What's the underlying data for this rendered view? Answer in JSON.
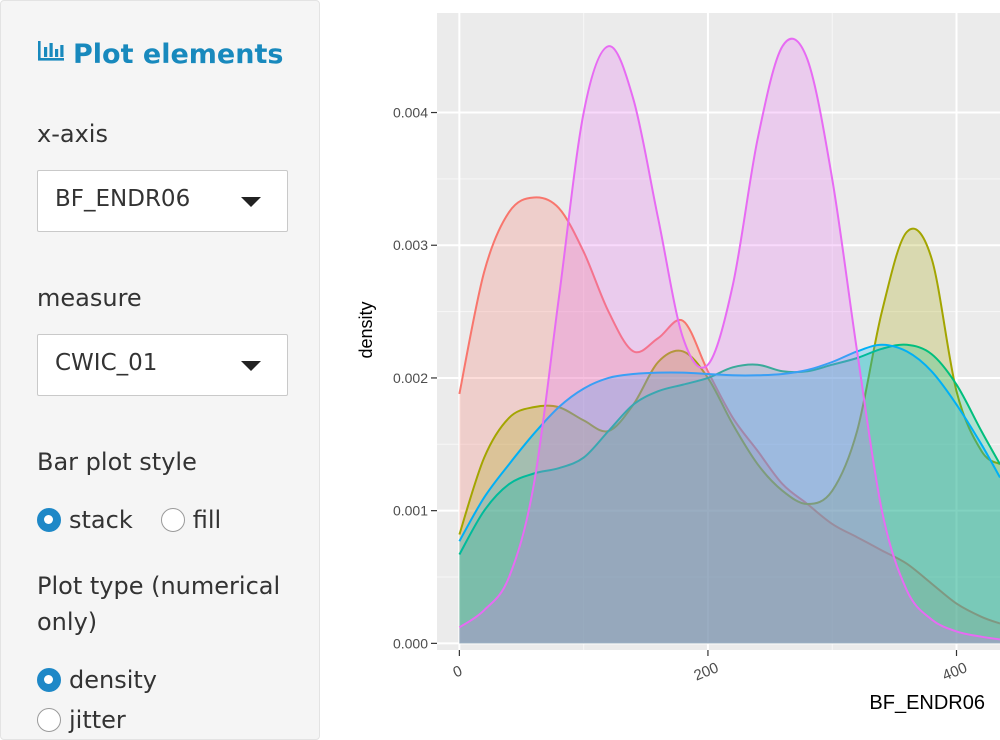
{
  "sidebar": {
    "title": "Plot elements",
    "title_icon": "bar-chart-icon",
    "xaxis": {
      "label": "x-axis",
      "value": "BF_ENDR06"
    },
    "measure": {
      "label": "measure",
      "value": "CWIC_01"
    },
    "bar_style": {
      "label": "Bar plot style",
      "options": [
        {
          "label": "stack",
          "selected": true
        },
        {
          "label": "fill",
          "selected": false
        }
      ]
    },
    "plot_type": {
      "label": "Plot type (numerical only)",
      "options": [
        {
          "label": "density",
          "selected": true
        },
        {
          "label": "jitter",
          "selected": false
        }
      ]
    }
  },
  "colors": {
    "accent": "#1889bd",
    "radio_selected": "#1e88c7",
    "panel_bg": "#ebebeb",
    "grid": "#ffffff"
  },
  "chart_data": {
    "type": "area",
    "subtype": "density",
    "title": "",
    "xlabel": "BF_ENDR06",
    "ylabel": "density",
    "xlim": [
      -18,
      435
    ],
    "ylim": [
      -5e-05,
      0.00475
    ],
    "x_ticks": [
      0,
      200,
      400
    ],
    "y_ticks": [
      0.0,
      0.001,
      0.002,
      0.003,
      0.004
    ],
    "y_tick_labels": [
      "0.000",
      "0.001",
      "0.002",
      "0.003",
      "0.004"
    ],
    "grid": true,
    "legend": "none",
    "fill_opacity": 0.25,
    "series": [
      {
        "color": "#F8766D",
        "x": [
          0,
          20,
          40,
          60,
          80,
          100,
          120,
          140,
          160,
          180,
          200,
          220,
          240,
          260,
          280,
          300,
          320,
          340,
          360,
          380,
          400,
          420,
          435
        ],
        "y": [
          0.00188,
          0.0028,
          0.00325,
          0.00336,
          0.00328,
          0.00295,
          0.0025,
          0.0022,
          0.0023,
          0.00243,
          0.00205,
          0.0017,
          0.00145,
          0.0012,
          0.00105,
          0.0009,
          0.0008,
          0.0007,
          0.0006,
          0.00045,
          0.0003,
          0.0002,
          0.00015
        ]
      },
      {
        "color": "#A3A500",
        "x": [
          0,
          20,
          40,
          60,
          80,
          100,
          120,
          140,
          160,
          180,
          200,
          220,
          240,
          260,
          280,
          300,
          320,
          340,
          360,
          380,
          400,
          420,
          435
        ],
        "y": [
          0.00082,
          0.0014,
          0.0017,
          0.00178,
          0.00178,
          0.00168,
          0.0016,
          0.0018,
          0.00212,
          0.0022,
          0.002,
          0.00165,
          0.00135,
          0.00115,
          0.00105,
          0.00115,
          0.0016,
          0.0025,
          0.0031,
          0.0029,
          0.0019,
          0.00145,
          0.00135
        ]
      },
      {
        "color": "#00BF7D",
        "x": [
          0,
          20,
          40,
          60,
          80,
          100,
          120,
          140,
          160,
          180,
          200,
          220,
          240,
          260,
          280,
          300,
          320,
          340,
          360,
          380,
          400,
          420,
          435
        ],
        "y": [
          0.00067,
          0.001,
          0.0012,
          0.00128,
          0.00132,
          0.0014,
          0.0016,
          0.0018,
          0.0019,
          0.00195,
          0.002,
          0.00208,
          0.0021,
          0.00205,
          0.00205,
          0.0021,
          0.00215,
          0.00222,
          0.00225,
          0.00218,
          0.00195,
          0.0016,
          0.00135
        ]
      },
      {
        "color": "#00B0F6",
        "x": [
          0,
          20,
          40,
          60,
          80,
          100,
          120,
          140,
          160,
          180,
          200,
          220,
          240,
          260,
          280,
          300,
          320,
          340,
          360,
          380,
          400,
          420,
          435
        ],
        "y": [
          0.00077,
          0.0011,
          0.00135,
          0.00158,
          0.00178,
          0.00192,
          0.002,
          0.00203,
          0.00204,
          0.00204,
          0.00203,
          0.00202,
          0.00202,
          0.00203,
          0.00206,
          0.00212,
          0.0022,
          0.00225,
          0.0022,
          0.00205,
          0.0018,
          0.0015,
          0.00125
        ]
      },
      {
        "color": "#E76BF3",
        "x": [
          0,
          20,
          40,
          60,
          80,
          100,
          120,
          140,
          160,
          180,
          200,
          220,
          240,
          260,
          280,
          300,
          320,
          340,
          360,
          380,
          400,
          420,
          435
        ],
        "y": [
          0.00012,
          0.00025,
          0.0005,
          0.0012,
          0.0026,
          0.004,
          0.0045,
          0.0041,
          0.0032,
          0.0023,
          0.0021,
          0.0027,
          0.0038,
          0.0045,
          0.0044,
          0.0035,
          0.0022,
          0.001,
          0.0004,
          0.00018,
          9e-05,
          5e-05,
          3e-05
        ]
      }
    ]
  }
}
